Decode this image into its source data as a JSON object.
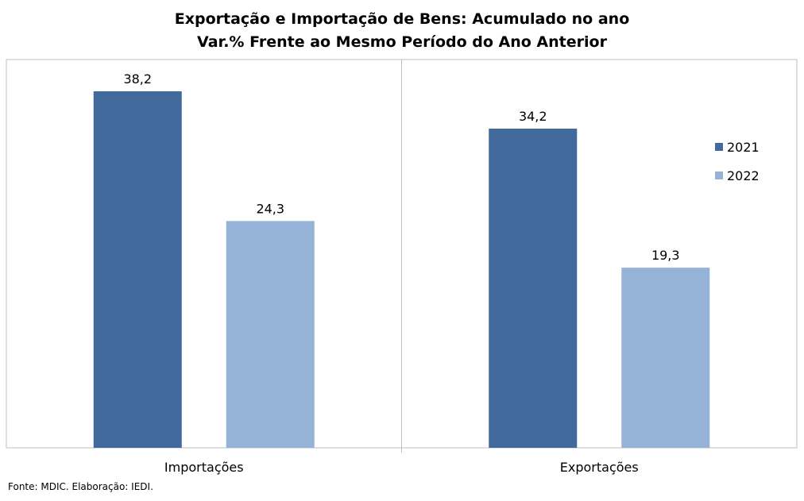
{
  "chart_data": {
    "type": "bar",
    "title": "Exportação e Importação de Bens: Acumulado no ano",
    "subtitle": "Var.%  Frente ao Mesmo Período do Ano Anterior",
    "categories": [
      "Importações",
      "Exportações"
    ],
    "series": [
      {
        "name": "2021",
        "values": [
          38.2,
          34.2
        ],
        "labels": [
          "38,2",
          "34,2"
        ],
        "color": "#41699b"
      },
      {
        "name": "2022",
        "values": [
          24.3,
          19.3
        ],
        "labels": [
          "24,3",
          "19,3"
        ],
        "color": "#95b3d7"
      }
    ],
    "ylim": [
      0,
      41.6
    ],
    "grid": false,
    "legend_position": "right"
  },
  "footnote": "Fonte: MDIC. Elaboração: IEDI."
}
